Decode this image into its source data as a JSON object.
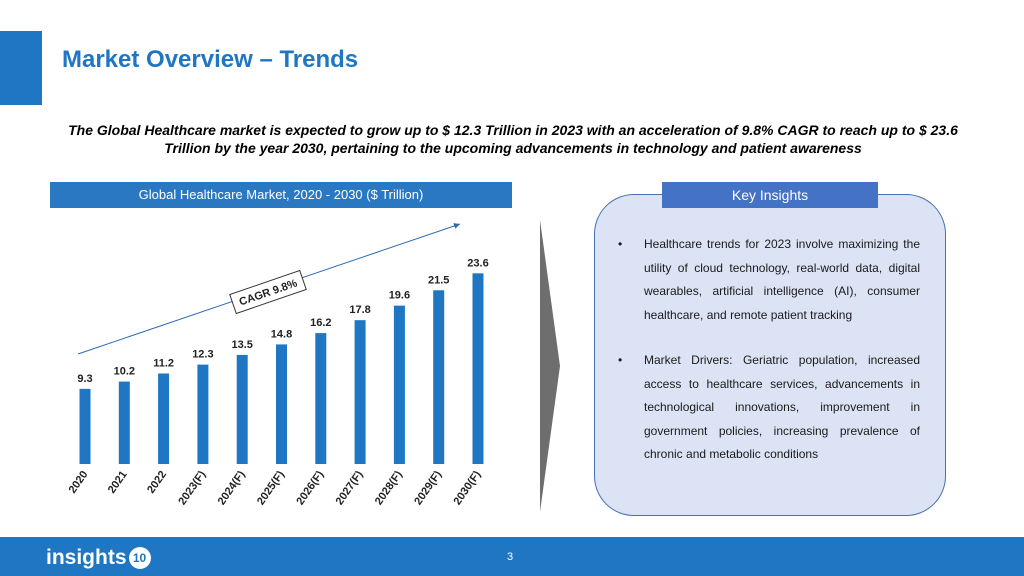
{
  "slide": {
    "title": "Market Overview – Trends",
    "subtitle": "The Global Healthcare market is expected to grow up to $ 12.3 Trillion in 2023 with an acceleration of 9.8% CAGR to reach up to $ 23.6 Trillion by the year 2030, pertaining to the upcoming advancements in technology and patient awareness",
    "page_number": "3",
    "accent_color": "#1f77c4"
  },
  "chart_header": "Global Healthcare Market, 2020 - 2030 ($ Trillion)",
  "chart_data": {
    "type": "bar",
    "categories": [
      "2020",
      "2021",
      "2022",
      "2023(F)",
      "2024(F)",
      "2025(F)",
      "2026(F)",
      "2027(F)",
      "2028(F)",
      "2029(F)",
      "2030(F)"
    ],
    "values": [
      9.3,
      10.2,
      11.2,
      12.3,
      13.5,
      14.8,
      16.2,
      17.8,
      19.6,
      21.5,
      23.6
    ],
    "annotation": "CAGR 9.8%",
    "bar_color": "#1f77c4",
    "ylim": [
      0,
      25
    ]
  },
  "insights": {
    "header": "Key Insights",
    "items": [
      "Healthcare trends for 2023 involve maximizing the utility of cloud technology, real-world data, digital wearables, artificial intelligence (AI), consumer healthcare, and remote patient tracking",
      "Market Drivers: Geriatric population, increased access to healthcare services, advancements in technological innovations, improvement in government policies, increasing prevalence of chronic and metabolic conditions"
    ]
  },
  "footer": {
    "logo_text": "insights",
    "logo_badge": "10"
  }
}
